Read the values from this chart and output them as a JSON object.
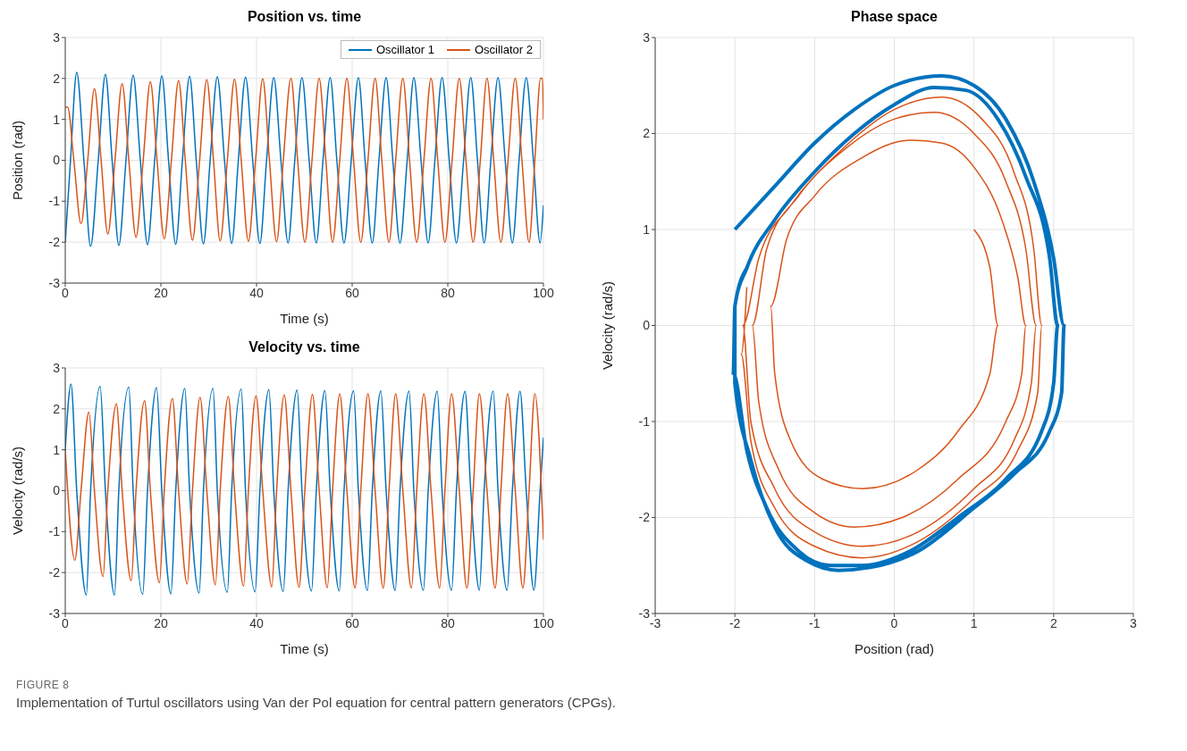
{
  "chart_data": [
    {
      "type": "line",
      "title": "Position vs. time",
      "xlabel": "Time (s)",
      "ylabel": "Position (rad)",
      "xlim": [
        0,
        100
      ],
      "ylim": [
        -3,
        3
      ],
      "xticks": [
        0,
        20,
        40,
        60,
        80,
        100
      ],
      "yticks": [
        -3,
        -2,
        -1,
        0,
        1,
        2,
        3
      ],
      "grid": true,
      "legend": "top right",
      "annotations": [
        "FIGURE 8",
        "Implementation of Turtul oscillators using Van der Pol equation for central pattern generators (CPGs)."
      ],
      "series": [
        {
          "name": "Oscillator 1",
          "color": "#0072bd",
          "x": [
            0,
            1.1,
            2.4,
            3.9,
            5.3,
            6.9,
            8.4,
            9.8,
            11.2,
            12.7,
            14.2,
            15.7,
            17.2,
            18.7,
            20.2,
            21.6,
            23.1,
            24.5,
            26.0,
            27.4,
            28.9,
            30.3,
            31.8,
            33.3,
            34.8,
            36.2,
            37.7,
            39.2,
            40.7,
            42.1,
            43.6,
            45.1,
            46.6,
            48.0,
            49.5,
            51.0,
            52.5,
            53.9,
            55.4,
            56.8,
            58.3,
            59.8,
            61.3,
            62.7,
            64.2,
            65.6,
            67.1,
            68.5,
            70.0,
            71.5,
            72.9,
            74.4,
            75.9,
            77.3,
            78.8,
            80.3,
            81.8,
            83.3,
            84.8,
            86.2,
            87.6,
            89.0,
            90.5,
            92.0,
            93.5,
            94.9,
            96.4,
            97.9,
            99.3,
            100
          ],
          "values": [
            -2.0,
            0,
            2.15,
            0,
            -2.1,
            0,
            2.1,
            0,
            -2.08,
            0,
            2.08,
            0,
            -2.06,
            0,
            2.06,
            0,
            -2.05,
            0,
            2.05,
            0,
            -2.04,
            0,
            2.04,
            0,
            -2.03,
            0,
            2.03,
            0,
            -2.03,
            0,
            2.02,
            0,
            -2.02,
            0,
            2.02,
            0,
            -2.02,
            0,
            2.02,
            0,
            -2.02,
            0,
            2.02,
            0,
            -2.02,
            0,
            2.02,
            0,
            -2.02,
            0,
            2.02,
            0,
            -2.02,
            0,
            2.02,
            0,
            -2.02,
            0,
            2.02,
            0,
            -2.02,
            0,
            2.02,
            0,
            -2.02,
            0,
            2.02,
            0,
            -2.02,
            -1.1
          ]
        },
        {
          "name": "Oscillator 2",
          "color": "#d95319",
          "x": [
            0,
            0.5,
            1.8,
            3.3,
            4.7,
            6.1,
            7.5,
            8.9,
            10.4,
            11.9,
            13.3,
            14.8,
            16.3,
            17.8,
            19.2,
            20.7,
            22.2,
            23.7,
            25.1,
            26.6,
            28.1,
            29.6,
            31.0,
            32.4,
            33.9,
            35.4,
            36.8,
            38.3,
            39.8,
            41.3,
            42.7,
            44.2,
            45.6,
            47.2,
            48.6,
            50.1,
            51.6,
            53.1,
            54.5,
            55.9,
            57.4,
            58.9,
            60.3,
            61.8,
            63.3,
            64.8,
            66.2,
            67.7,
            69.1,
            70.6,
            72.0,
            73.5,
            75.0,
            76.5,
            77.9,
            79.4,
            80.9,
            82.4,
            83.8,
            85.3,
            86.8,
            88.2,
            89.6,
            91.1,
            92.6,
            94.1,
            95.5,
            97.0,
            98.2,
            99.4,
            99.8,
            100
          ],
          "values": [
            1.3,
            1.3,
            0,
            -1.55,
            0,
            1.75,
            0,
            -1.8,
            0,
            1.87,
            0,
            -1.88,
            0,
            1.92,
            0,
            -1.92,
            0,
            1.95,
            0,
            -1.95,
            0,
            1.97,
            0,
            -1.97,
            0,
            1.98,
            0,
            -1.98,
            0,
            1.99,
            0,
            -1.99,
            0,
            2.0,
            0,
            -2.0,
            0,
            2.0,
            0,
            -2.0,
            0,
            2.0,
            0,
            -2.0,
            0,
            2.0,
            0,
            -2.0,
            0,
            2.0,
            0,
            -2.0,
            0,
            2.0,
            0,
            -2.0,
            0,
            2.0,
            0,
            -2.0,
            0,
            2.0,
            0,
            -2.0,
            0,
            2.0,
            0,
            -2.0,
            0,
            2.0,
            2.0,
            1.0
          ]
        }
      ]
    },
    {
      "type": "line",
      "title": "Velocity vs. time",
      "xlabel": "Time (s)",
      "ylabel": "Velocity (rad/s)",
      "xlim": [
        0,
        100
      ],
      "ylim": [
        -3,
        3
      ],
      "xticks": [
        0,
        20,
        40,
        60,
        80,
        100
      ],
      "yticks": [
        -3,
        -2,
        -1,
        0,
        1,
        2,
        3
      ],
      "grid": true,
      "series": [
        {
          "color": "#0072bd",
          "x": [
            0,
            1.2,
            2.4,
            4.4,
            5.3,
            7.3,
            8.4,
            10.3,
            11.2,
            13.3,
            14.2,
            16.2,
            17.2,
            19.1,
            20.2,
            22.1,
            23.1,
            25.0,
            26.0,
            28.0,
            28.9,
            30.9,
            31.8,
            33.9,
            34.8,
            36.8,
            37.7,
            39.7,
            40.7,
            42.6,
            43.6,
            45.6,
            46.6,
            48.5,
            49.5,
            51.5,
            52.5,
            54.3,
            55.4,
            57.3,
            58.3,
            60.3,
            61.3,
            63.2,
            64.2,
            66.0,
            67.1,
            69.0,
            70.0,
            71.9,
            72.9,
            74.9,
            75.9,
            77.8,
            78.8,
            80.8,
            81.8,
            83.6,
            84.8,
            86.6,
            87.6,
            89.5,
            90.5,
            92.4,
            93.5,
            95.1,
            96.4,
            98.0,
            99.3,
            100
          ],
          "values": [
            1.0,
            2.6,
            0,
            -2.55,
            0,
            2.55,
            0,
            -2.55,
            0,
            2.53,
            0,
            -2.53,
            0,
            2.52,
            0,
            -2.52,
            0,
            2.5,
            0,
            -2.5,
            0,
            2.5,
            0,
            -2.48,
            0,
            2.48,
            0,
            -2.47,
            0,
            2.47,
            0,
            -2.46,
            0,
            2.46,
            0,
            -2.45,
            0,
            2.45,
            0,
            -2.45,
            0,
            2.44,
            0,
            -2.44,
            0,
            2.44,
            0,
            -2.44,
            0,
            2.43,
            0,
            -2.43,
            0,
            2.43,
            0,
            -2.43,
            0,
            2.43,
            0,
            -2.43,
            0,
            2.43,
            0,
            -2.43,
            0,
            2.43,
            0,
            -2.43,
            0,
            1.3
          ]
        },
        {
          "color": "#d95319",
          "x": [
            0,
            2.0,
            3.3,
            4.95,
            6.1,
            7.9,
            8.9,
            10.7,
            11.9,
            13.8,
            14.8,
            16.6,
            17.8,
            19.7,
            20.7,
            22.4,
            23.7,
            25.5,
            26.6,
            28.2,
            29.6,
            31.4,
            32.4,
            34.1,
            35.4,
            37.3,
            38.3,
            39.9,
            41.3,
            43.2,
            44.2,
            45.8,
            47.2,
            48.9,
            50.1,
            51.7,
            53.1,
            54.8,
            55.9,
            57.4,
            58.9,
            60.6,
            61.8,
            63.3,
            64.8,
            66.5,
            67.7,
            69.1,
            70.6,
            72.4,
            73.5,
            75.0,
            76.5,
            78.3,
            79.4,
            80.8,
            82.4,
            84.0,
            85.3,
            86.6,
            88.2,
            89.9,
            91.1,
            92.5,
            94.1,
            95.7,
            97.0,
            98.2,
            100
          ],
          "values": [
            1.0,
            -1.7,
            0,
            1.92,
            0,
            -2.1,
            0,
            2.12,
            0,
            -2.2,
            0,
            2.2,
            0,
            -2.25,
            0,
            2.25,
            0,
            -2.28,
            0,
            2.28,
            0,
            -2.3,
            0,
            2.3,
            0,
            -2.33,
            0,
            2.32,
            0,
            -2.35,
            0,
            2.34,
            0,
            -2.36,
            0,
            2.35,
            0,
            -2.37,
            0,
            2.36,
            0,
            -2.38,
            0,
            2.37,
            0,
            -2.38,
            0,
            2.37,
            0,
            -2.38,
            0,
            2.37,
            0,
            -2.38,
            0,
            2.37,
            0,
            -2.38,
            0,
            2.37,
            0,
            -2.38,
            0,
            2.37,
            0,
            -2.38,
            0,
            2.37,
            -1.2
          ]
        }
      ]
    },
    {
      "type": "line",
      "title": "Phase space",
      "xlabel": "Position (rad)",
      "ylabel": "Velocity (rad/s)",
      "xlim": [
        -3,
        3
      ],
      "ylim": [
        -3,
        3
      ],
      "xticks": [
        -3,
        -2,
        -1,
        0,
        1,
        2,
        3
      ],
      "yticks": [
        -3,
        -2,
        -1,
        0,
        1,
        2,
        3
      ],
      "grid": true,
      "series": [
        {
          "color": "#0072bd",
          "x": [
            -2,
            -1.5,
            -1,
            -0.5,
            0,
            0.6,
            1.0,
            1.4,
            1.75,
            2.0,
            2.13,
            2.1,
            1.95,
            1.5,
            1.0,
            0.3,
            -0.3,
            -0.7,
            -1.1,
            -1.5,
            -1.8,
            -2.0,
            -2.0,
            -1.85,
            -1.5,
            -1,
            -0.5,
            0,
            0.5,
            0.9,
            1.3,
            1.65,
            1.95,
            2.05,
            2.0,
            1.85,
            1.4,
            0.8,
            0.2,
            -0.4,
            -0.8,
            -1.2,
            -1.6,
            -1.85,
            -2.02,
            -2.0,
            -1.85
          ],
          "values": [
            1,
            1.45,
            1.9,
            2.25,
            2.5,
            2.6,
            2.5,
            2.15,
            1.5,
            0.7,
            0,
            -0.7,
            -1.1,
            -1.55,
            -1.9,
            -2.35,
            -2.52,
            -2.55,
            -2.45,
            -2.1,
            -1.4,
            -0.6,
            0.2,
            0.6,
            1.1,
            1.6,
            2.0,
            2.3,
            2.48,
            2.45,
            2.15,
            1.55,
            0.7,
            0,
            -0.6,
            -1.1,
            -1.6,
            -2.0,
            -2.35,
            -2.5,
            -2.5,
            -2.35,
            -1.9,
            -1.3,
            -0.5,
            0.2,
            0.6
          ]
        },
        {
          "color": "#d95319",
          "x": [
            1.0,
            1.2,
            1.3,
            1.2,
            0.8,
            0.3,
            -0.4,
            -0.9,
            -1.3,
            -1.5,
            -1.55,
            -1.35,
            -1.0,
            -0.4,
            0.2,
            0.6,
            1.0,
            1.35,
            1.55,
            1.65,
            1.6,
            1.4,
            0.8,
            0.1,
            -0.5,
            -1.0,
            -1.45,
            -1.7,
            -1.78,
            -1.6,
            -1.2,
            -0.6,
            0,
            0.5,
            1.0,
            1.4,
            1.65,
            1.78,
            1.72,
            1.5,
            1.0,
            0.3,
            -0.4,
            -1.0,
            -1.5,
            -1.8,
            -1.9,
            -1.7,
            -1.3,
            -0.7,
            0,
            0.6,
            1.1,
            1.5,
            1.75,
            1.85,
            1.8,
            1.55,
            1.0,
            0.3,
            -0.4,
            -1.0,
            -1.5,
            -1.8,
            -1.92,
            -1.85
          ],
          "values": [
            1.0,
            0.6,
            0,
            -0.5,
            -1.1,
            -1.5,
            -1.7,
            -1.6,
            -1.2,
            -0.5,
            0.2,
            0.9,
            1.35,
            1.75,
            1.93,
            1.9,
            1.65,
            1.1,
            0.5,
            0,
            -0.5,
            -1.0,
            -1.6,
            -2.0,
            -2.1,
            -1.95,
            -1.5,
            -0.8,
            0,
            0.8,
            1.35,
            1.85,
            2.15,
            2.22,
            2.0,
            1.5,
            0.8,
            0,
            -0.6,
            -1.2,
            -1.7,
            -2.15,
            -2.3,
            -2.15,
            -1.7,
            -1.0,
            0,
            0.7,
            1.25,
            1.8,
            2.25,
            2.38,
            2.15,
            1.6,
            0.8,
            0,
            -0.7,
            -1.3,
            -1.8,
            -2.25,
            -2.42,
            -2.3,
            -1.9,
            -1.2,
            -0.3,
            0.4
          ]
        }
      ]
    }
  ]
}
